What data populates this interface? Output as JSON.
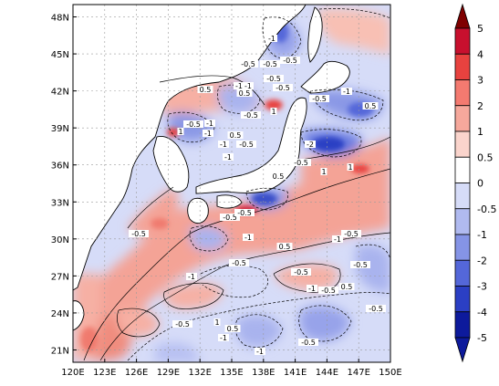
{
  "map": {
    "lon_ticks": [
      "120E",
      "123E",
      "126E",
      "129E",
      "132E",
      "135E",
      "138E",
      "141E",
      "144E",
      "147E",
      "150E"
    ],
    "lat_ticks": [
      "21N",
      "24N",
      "27N",
      "30N",
      "33N",
      "36N",
      "39N",
      "42N",
      "45N",
      "48N"
    ],
    "colorbar": {
      "levels": [
        "5",
        "4",
        "3",
        "2",
        "1",
        "0.5",
        "0",
        "-0.5",
        "-1",
        "-2",
        "-3",
        "-4",
        "-5"
      ],
      "colors": [
        "#7f0000",
        "#c8102e",
        "#e8423f",
        "#f47a70",
        "#f6a89c",
        "#fad4cc",
        "#ffffff",
        "#d6dcf8",
        "#b0baf0",
        "#8594e6",
        "#5467d9",
        "#2b3fc4",
        "#0d1a9c"
      ]
    },
    "contour_labels": [
      "-1",
      "-0.5",
      "-0.5",
      "-0.5",
      "-1",
      "0.5",
      "-1",
      "-0.5",
      "-0.5",
      "0.5",
      "-1",
      "-0.5",
      "1",
      "-0.5",
      "-1",
      "0.5",
      "1",
      "-0.5",
      "-1",
      "-2",
      "1",
      "-1",
      "0.5",
      "-0.5",
      "-1",
      "0.5",
      "-0.5",
      "1",
      "-0.5",
      "-0.5",
      "-1",
      "-0.5",
      "0.5",
      "-0.5",
      "-0.5",
      "0.5",
      "-1",
      "-0.5",
      "-1",
      "-0.5",
      "-0.5",
      "1",
      "-1",
      "-0.5",
      "-1",
      "0.5",
      "-1",
      "-0.5",
      "-0.5"
    ],
    "colors": {
      "land": "#ffffff",
      "ocean_base": "#d6dcf8",
      "coast": "#000000",
      "grid": "#9a9a9a"
    }
  }
}
